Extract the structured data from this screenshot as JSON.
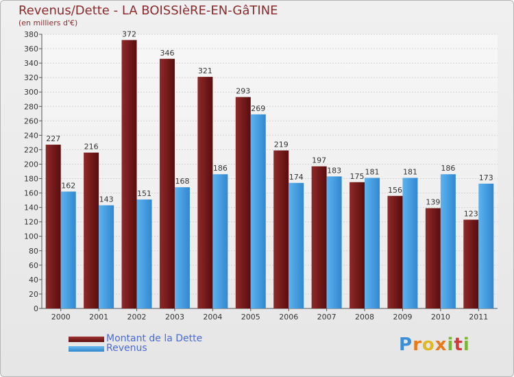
{
  "header": {
    "title": "Revenus/Dette - LA BOISSIèRE-EN-GâTINE",
    "subtitle": "(en milliers d'€)"
  },
  "colors": {
    "dette": "#7a1e1e",
    "revenus": "#4ea6e8",
    "title": "#8b2a2a",
    "legend_text": "#4a6ad8"
  },
  "legend": {
    "items": [
      {
        "label": "Montant de la Dette",
        "color": "#7a1e1e"
      },
      {
        "label": "Revenus",
        "color": "#4ea6e8"
      }
    ]
  },
  "logo": {
    "text": "Proxiti",
    "letters": [
      "P",
      "r",
      "o",
      "x",
      "i",
      "t",
      "i"
    ]
  },
  "chart_data": {
    "type": "bar",
    "title": "Revenus/Dette - LA BOISSIèRE-EN-GâTINE",
    "subtitle": "(en milliers d'€)",
    "xlabel": "",
    "ylabel": "",
    "ylim": [
      0,
      380
    ],
    "yticks": [
      0,
      20,
      40,
      60,
      80,
      100,
      120,
      140,
      160,
      180,
      200,
      220,
      240,
      260,
      280,
      300,
      320,
      340,
      360,
      380
    ],
    "grid": true,
    "legend_position": "bottom-left",
    "categories": [
      "2000",
      "2001",
      "2002",
      "2003",
      "2004",
      "2005",
      "2006",
      "2007",
      "2008",
      "2009",
      "2010",
      "2011"
    ],
    "series": [
      {
        "name": "Montant de la Dette",
        "values": [
          227,
          216,
          372,
          346,
          321,
          293,
          219,
          197,
          175,
          156,
          139,
          123
        ]
      },
      {
        "name": "Revenus",
        "values": [
          162,
          143,
          151,
          168,
          186,
          269,
          174,
          183,
          181,
          181,
          186,
          173
        ]
      }
    ]
  }
}
